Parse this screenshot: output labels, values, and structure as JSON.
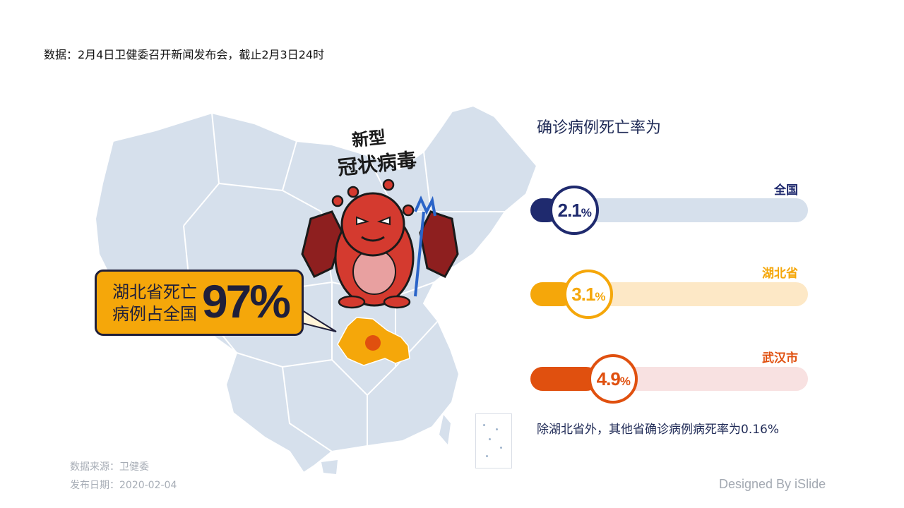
{
  "header": {
    "data_note": "数据：2月4日卫健委召开新闻发布会，截止2月3日24时"
  },
  "callout": {
    "line1": "湖北省死亡",
    "line2": "病例占全国",
    "percent": "97%"
  },
  "virus": {
    "title_line1": "新型",
    "title_line2": "冠状病毒"
  },
  "chart_data": {
    "type": "bar",
    "title": "确诊病例死亡率为",
    "unit": "%",
    "categories": [
      "全国",
      "湖北省",
      "武汉市"
    ],
    "values": [
      2.1,
      3.1,
      4.9
    ],
    "value_labels": [
      "2.1",
      "3.1",
      "4.9"
    ],
    "colors": [
      "#1f2a6e",
      "#f5a70a",
      "#e0500f"
    ],
    "track_colors": [
      "#d6e0ec",
      "#fde8c6",
      "#f8e1e1"
    ],
    "xlim": [
      0,
      20
    ],
    "note": "除湖北省外，其他省确诊病例病死率为0.16%"
  },
  "footer": {
    "source": "数据来源：卫健委",
    "date": "发布日期：2020-02-04",
    "credit": "Designed By iSlide"
  },
  "colors": {
    "map_fill": "#d6e0ec",
    "map_border": "#ffffff",
    "hubei": "#f5a70a",
    "wuhan_dot": "#e0500f",
    "virus_body": "#d43a2f",
    "navy": "#1f2a56"
  }
}
